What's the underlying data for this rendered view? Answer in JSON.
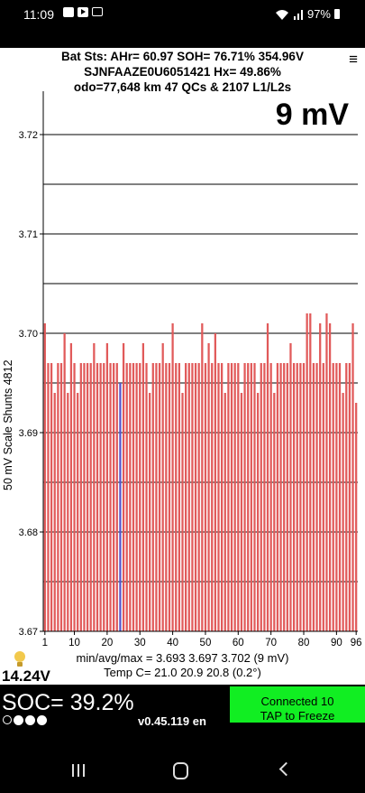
{
  "status_bar": {
    "time": "11:09",
    "battery": "97%",
    "icons": [
      "image-icon",
      "play-icon",
      "mail-icon",
      "wifi-icon",
      "signal-icon",
      "battery-icon"
    ]
  },
  "header": {
    "line1": "Bat Sts:  AHr= 60.97  SOH= 76.71%   354.96V",
    "line2": "SJNFAAZE0U6051421   Hx= 49.86%",
    "line3": "odo=77,648 km 47 QCs & 2107 L1/L2s",
    "menu_glyph": "≡"
  },
  "scale_label": "9 mV",
  "chart_data": {
    "type": "bar",
    "title": "",
    "ylabel": "50 mV Scale   Shunts 4812",
    "xlabel": "",
    "ylim": [
      3.67,
      3.725
    ],
    "y_ticks": [
      "3.72",
      "3.71",
      "3.70",
      "3.69",
      "3.68",
      "3.67"
    ],
    "x_ticks": [
      "1",
      "10",
      "20",
      "30",
      "40",
      "50",
      "60",
      "70",
      "80",
      "90",
      "96"
    ],
    "grid": true,
    "categories_count": 96,
    "bar_color": "#e15a5a",
    "highlight_color": "#5555cc",
    "highlight_cell": 24,
    "values": [
      3.701,
      3.697,
      3.697,
      3.694,
      3.697,
      3.697,
      3.7,
      3.694,
      3.699,
      3.697,
      3.694,
      3.697,
      3.697,
      3.697,
      3.697,
      3.699,
      3.697,
      3.697,
      3.697,
      3.699,
      3.697,
      3.697,
      3.697,
      3.695,
      3.699,
      3.697,
      3.697,
      3.697,
      3.697,
      3.697,
      3.699,
      3.697,
      3.694,
      3.697,
      3.697,
      3.697,
      3.699,
      3.697,
      3.697,
      3.701,
      3.697,
      3.697,
      3.694,
      3.697,
      3.697,
      3.697,
      3.697,
      3.697,
      3.701,
      3.697,
      3.699,
      3.697,
      3.7,
      3.697,
      3.697,
      3.694,
      3.697,
      3.697,
      3.697,
      3.697,
      3.694,
      3.697,
      3.697,
      3.697,
      3.697,
      3.694,
      3.697,
      3.697,
      3.701,
      3.697,
      3.694,
      3.697,
      3.697,
      3.697,
      3.697,
      3.699,
      3.697,
      3.697,
      3.697,
      3.697,
      3.702,
      3.702,
      3.697,
      3.697,
      3.701,
      3.697,
      3.702,
      3.701,
      3.697,
      3.697,
      3.697,
      3.694,
      3.697,
      3.697,
      3.701,
      3.693
    ]
  },
  "stats": {
    "line1": "min/avg/max = 3.693 3.697 3.702  (9 mV)",
    "line2": "Temp C= 21.0  20.9  20.8  (0.2°)"
  },
  "pack_voltage": "14.24V",
  "soc": "SOC= 39.2%",
  "version": "v0.45.119 en",
  "connect_button": {
    "line1": "Connected 10",
    "line2": "TAP to Freeze"
  }
}
